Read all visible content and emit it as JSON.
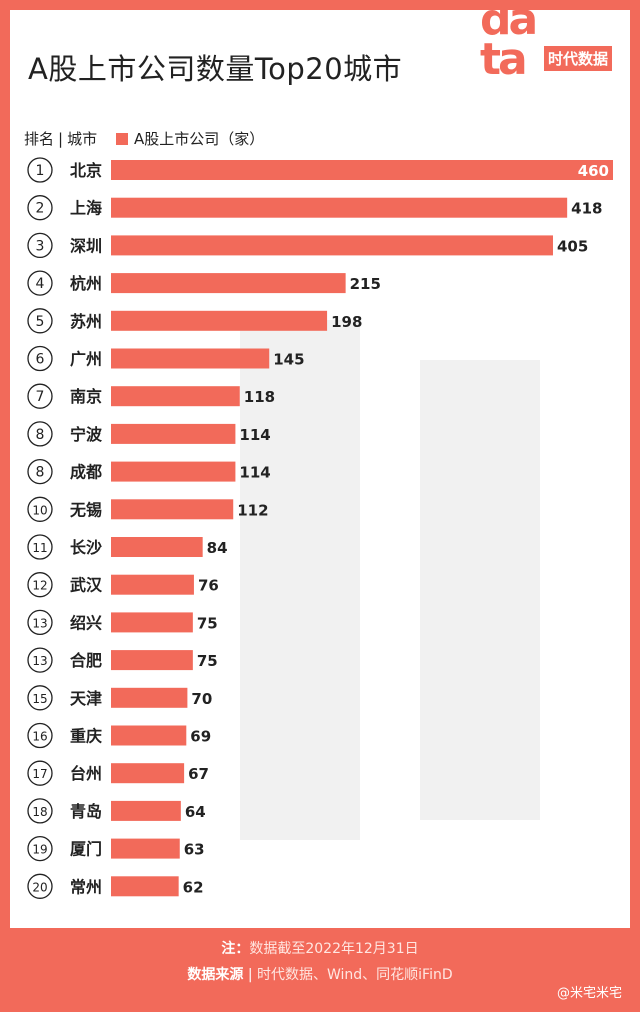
{
  "title": "A股上市公司数量Top20城市",
  "logo": {
    "word": "data",
    "cn": "时代数据"
  },
  "header": {
    "rank_label": "排名",
    "sep": "|",
    "city_label": "城市"
  },
  "colors": {
    "bar": "#f26a5a",
    "background": "#f26a5a"
  },
  "chart_data": {
    "type": "bar",
    "orientation": "horizontal",
    "legend": "A股上市公司（家）",
    "categories": [
      "北京",
      "上海",
      "深圳",
      "杭州",
      "苏州",
      "广州",
      "南京",
      "宁波",
      "成都",
      "无锡",
      "长沙",
      "武汉",
      "绍兴",
      "合肥",
      "天津",
      "重庆",
      "台州",
      "青岛",
      "厦门",
      "常州"
    ],
    "ranks": [
      1,
      2,
      3,
      4,
      5,
      6,
      7,
      8,
      8,
      10,
      11,
      12,
      13,
      13,
      15,
      16,
      17,
      18,
      19,
      20
    ],
    "values": [
      460,
      418,
      405,
      215,
      198,
      145,
      118,
      114,
      114,
      112,
      84,
      76,
      75,
      75,
      70,
      69,
      67,
      64,
      63,
      62
    ],
    "xlim": [
      0,
      460
    ]
  },
  "footer": {
    "note_label": "注：",
    "note_text": "数据截至2022年12月31日",
    "source_label": "数据来源",
    "source_sep": "|",
    "source_text": "时代数据、Wind、同花顺iFinD",
    "credit": "@米宅米宅"
  }
}
